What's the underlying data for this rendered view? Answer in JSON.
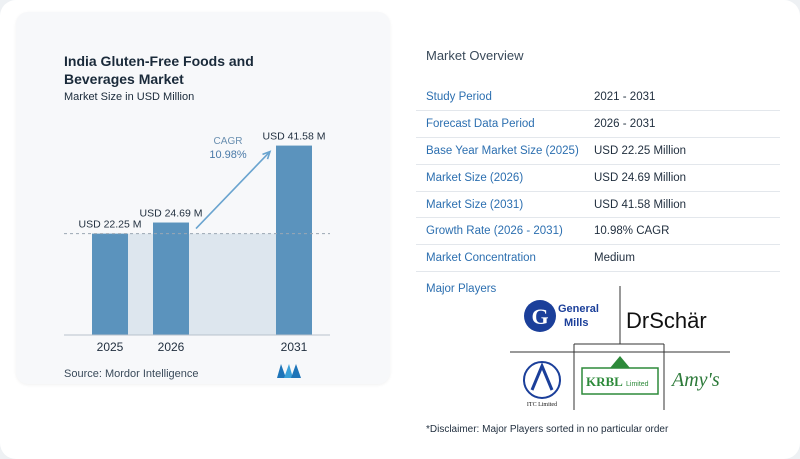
{
  "header": {
    "title_line1": "India Gluten-Free Foods and",
    "title_line2": "Beverages Market",
    "subtitle": "Market Size in USD Million"
  },
  "chart_data": {
    "type": "bar",
    "title": "India Gluten-Free Foods and Beverages Market",
    "subtitle": "Market Size in USD Million",
    "categories": [
      "2025",
      "2026",
      "2031"
    ],
    "values": [
      22.25,
      24.69,
      41.58
    ],
    "value_labels": [
      "USD 22.25 M",
      "USD 24.69 M",
      "USD 41.58 M"
    ],
    "ylim": [
      0,
      45
    ],
    "grid": false,
    "annotation": {
      "label": "CAGR",
      "value": "10.98%"
    },
    "colors": {
      "bar": "#5b93bd",
      "highlight_band": "#dde6ee",
      "arrow": "#6aa4cf",
      "dashed_line": "#9aa7b4"
    }
  },
  "footer": {
    "source": "Source:  Mordor Intelligence"
  },
  "overview": {
    "title": "Market Overview",
    "rows": [
      {
        "key": "Study Period",
        "value": "2021 - 2031"
      },
      {
        "key": "Forecast Data Period",
        "value": "2026 - 2031"
      },
      {
        "key": "Base Year Market Size (2025)",
        "value": "USD 22.25 Million"
      },
      {
        "key": "Market Size (2026)",
        "value": "USD 24.69 Million"
      },
      {
        "key": "Market Size (2031)",
        "value": "USD 41.58 Million"
      },
      {
        "key": "Growth Rate (2026 - 2031)",
        "value": "10.98% CAGR"
      },
      {
        "key": "Market Concentration",
        "value": "Medium"
      }
    ],
    "major_players_label": "Major Players",
    "players": [
      {
        "name": "General Mills",
        "logo_text": "General Mills"
      },
      {
        "name": "Dr Schär",
        "logo_text": "DrSchär"
      },
      {
        "name": "ITC Limited",
        "logo_text": "ITC Limited"
      },
      {
        "name": "KRBL Limited",
        "logo_text": "KRBL Limited"
      },
      {
        "name": "Amy's",
        "logo_text": "Amy's"
      }
    ],
    "disclaimer": "*Disclaimer: Major Players sorted in no particular order"
  }
}
